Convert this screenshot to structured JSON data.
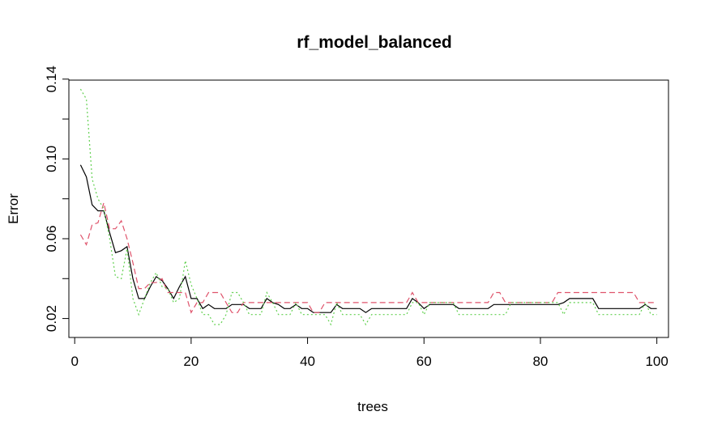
{
  "chart_data": {
    "type": "line",
    "title": "rf_model_balanced",
    "xlabel": "trees",
    "ylabel": "Error",
    "xlim": [
      -1,
      102
    ],
    "ylim": [
      0.0105,
      0.1395
    ],
    "xticks": [
      0,
      20,
      40,
      60,
      80,
      100
    ],
    "yticks": [
      0.02,
      0.06,
      0.1,
      0.14
    ],
    "yticks_minor": [
      0.04,
      0.08,
      0.12
    ],
    "grid": false,
    "legend": "none",
    "x": [
      1,
      2,
      3,
      4,
      5,
      6,
      7,
      8,
      9,
      10,
      11,
      12,
      13,
      14,
      15,
      16,
      17,
      18,
      19,
      20,
      21,
      22,
      23,
      24,
      25,
      26,
      27,
      28,
      29,
      30,
      31,
      32,
      33,
      34,
      35,
      36,
      37,
      38,
      39,
      40,
      41,
      42,
      43,
      44,
      45,
      46,
      47,
      48,
      49,
      50,
      51,
      52,
      53,
      54,
      55,
      56,
      57,
      58,
      59,
      60,
      61,
      62,
      63,
      64,
      65,
      66,
      67,
      68,
      69,
      70,
      71,
      72,
      73,
      74,
      75,
      76,
      77,
      78,
      79,
      80,
      81,
      82,
      83,
      84,
      85,
      86,
      87,
      88,
      89,
      90,
      91,
      92,
      93,
      94,
      95,
      96,
      97,
      98,
      99,
      100
    ],
    "series": [
      {
        "color": "#000000",
        "dash": "solid",
        "values": [
          0.097,
          0.091,
          0.077,
          0.074,
          0.074,
          0.063,
          0.053,
          0.054,
          0.056,
          0.04,
          0.03,
          0.03,
          0.036,
          0.041,
          0.039,
          0.035,
          0.03,
          0.036,
          0.041,
          0.03,
          0.03,
          0.025,
          0.027,
          0.025,
          0.025,
          0.025,
          0.027,
          0.027,
          0.027,
          0.025,
          0.025,
          0.025,
          0.03,
          0.028,
          0.027,
          0.025,
          0.025,
          0.027,
          0.025,
          0.025,
          0.023,
          0.023,
          0.023,
          0.023,
          0.027,
          0.025,
          0.025,
          0.025,
          0.025,
          0.023,
          0.025,
          0.025,
          0.025,
          0.025,
          0.025,
          0.025,
          0.025,
          0.03,
          0.028,
          0.025,
          0.027,
          0.027,
          0.027,
          0.027,
          0.027,
          0.025,
          0.025,
          0.025,
          0.025,
          0.025,
          0.025,
          0.027,
          0.027,
          0.027,
          0.027,
          0.027,
          0.027,
          0.027,
          0.027,
          0.027,
          0.027,
          0.027,
          0.027,
          0.028,
          0.03,
          0.03,
          0.03,
          0.03,
          0.03,
          0.025,
          0.025,
          0.025,
          0.025,
          0.025,
          0.025,
          0.025,
          0.025,
          0.027,
          0.025,
          0.025
        ]
      },
      {
        "color": "#DF536B",
        "dash": "dashed",
        "values": [
          0.062,
          0.057,
          0.067,
          0.068,
          0.078,
          0.065,
          0.065,
          0.069,
          0.06,
          0.048,
          0.035,
          0.035,
          0.038,
          0.038,
          0.04,
          0.033,
          0.033,
          0.033,
          0.033,
          0.023,
          0.028,
          0.028,
          0.033,
          0.033,
          0.033,
          0.028,
          0.023,
          0.023,
          0.028,
          0.028,
          0.028,
          0.028,
          0.028,
          0.028,
          0.028,
          0.028,
          0.028,
          0.028,
          0.028,
          0.028,
          0.023,
          0.023,
          0.028,
          0.028,
          0.028,
          0.028,
          0.028,
          0.028,
          0.028,
          0.028,
          0.028,
          0.028,
          0.028,
          0.028,
          0.028,
          0.028,
          0.028,
          0.033,
          0.028,
          0.028,
          0.028,
          0.028,
          0.028,
          0.028,
          0.028,
          0.028,
          0.028,
          0.028,
          0.028,
          0.028,
          0.028,
          0.033,
          0.033,
          0.028,
          0.028,
          0.028,
          0.028,
          0.028,
          0.028,
          0.028,
          0.028,
          0.028,
          0.033,
          0.033,
          0.033,
          0.033,
          0.033,
          0.033,
          0.033,
          0.033,
          0.033,
          0.033,
          0.033,
          0.033,
          0.033,
          0.033,
          0.028,
          0.028,
          0.028,
          0.028
        ]
      },
      {
        "color": "#61D04F",
        "dash": "dotted",
        "values": [
          0.135,
          0.13,
          0.09,
          0.08,
          0.075,
          0.06,
          0.041,
          0.04,
          0.055,
          0.03,
          0.022,
          0.03,
          0.038,
          0.043,
          0.036,
          0.035,
          0.028,
          0.03,
          0.049,
          0.037,
          0.03,
          0.022,
          0.022,
          0.017,
          0.017,
          0.022,
          0.033,
          0.033,
          0.028,
          0.022,
          0.022,
          0.022,
          0.033,
          0.028,
          0.022,
          0.022,
          0.022,
          0.028,
          0.022,
          0.022,
          0.022,
          0.022,
          0.022,
          0.017,
          0.028,
          0.022,
          0.022,
          0.022,
          0.022,
          0.017,
          0.022,
          0.022,
          0.022,
          0.022,
          0.022,
          0.022,
          0.022,
          0.028,
          0.028,
          0.022,
          0.028,
          0.028,
          0.028,
          0.028,
          0.028,
          0.022,
          0.022,
          0.022,
          0.022,
          0.022,
          0.022,
          0.022,
          0.022,
          0.022,
          0.028,
          0.028,
          0.028,
          0.028,
          0.028,
          0.028,
          0.028,
          0.028,
          0.028,
          0.022,
          0.028,
          0.028,
          0.028,
          0.028,
          0.028,
          0.022,
          0.022,
          0.022,
          0.022,
          0.022,
          0.022,
          0.022,
          0.022,
          0.028,
          0.022,
          0.022
        ]
      }
    ]
  }
}
